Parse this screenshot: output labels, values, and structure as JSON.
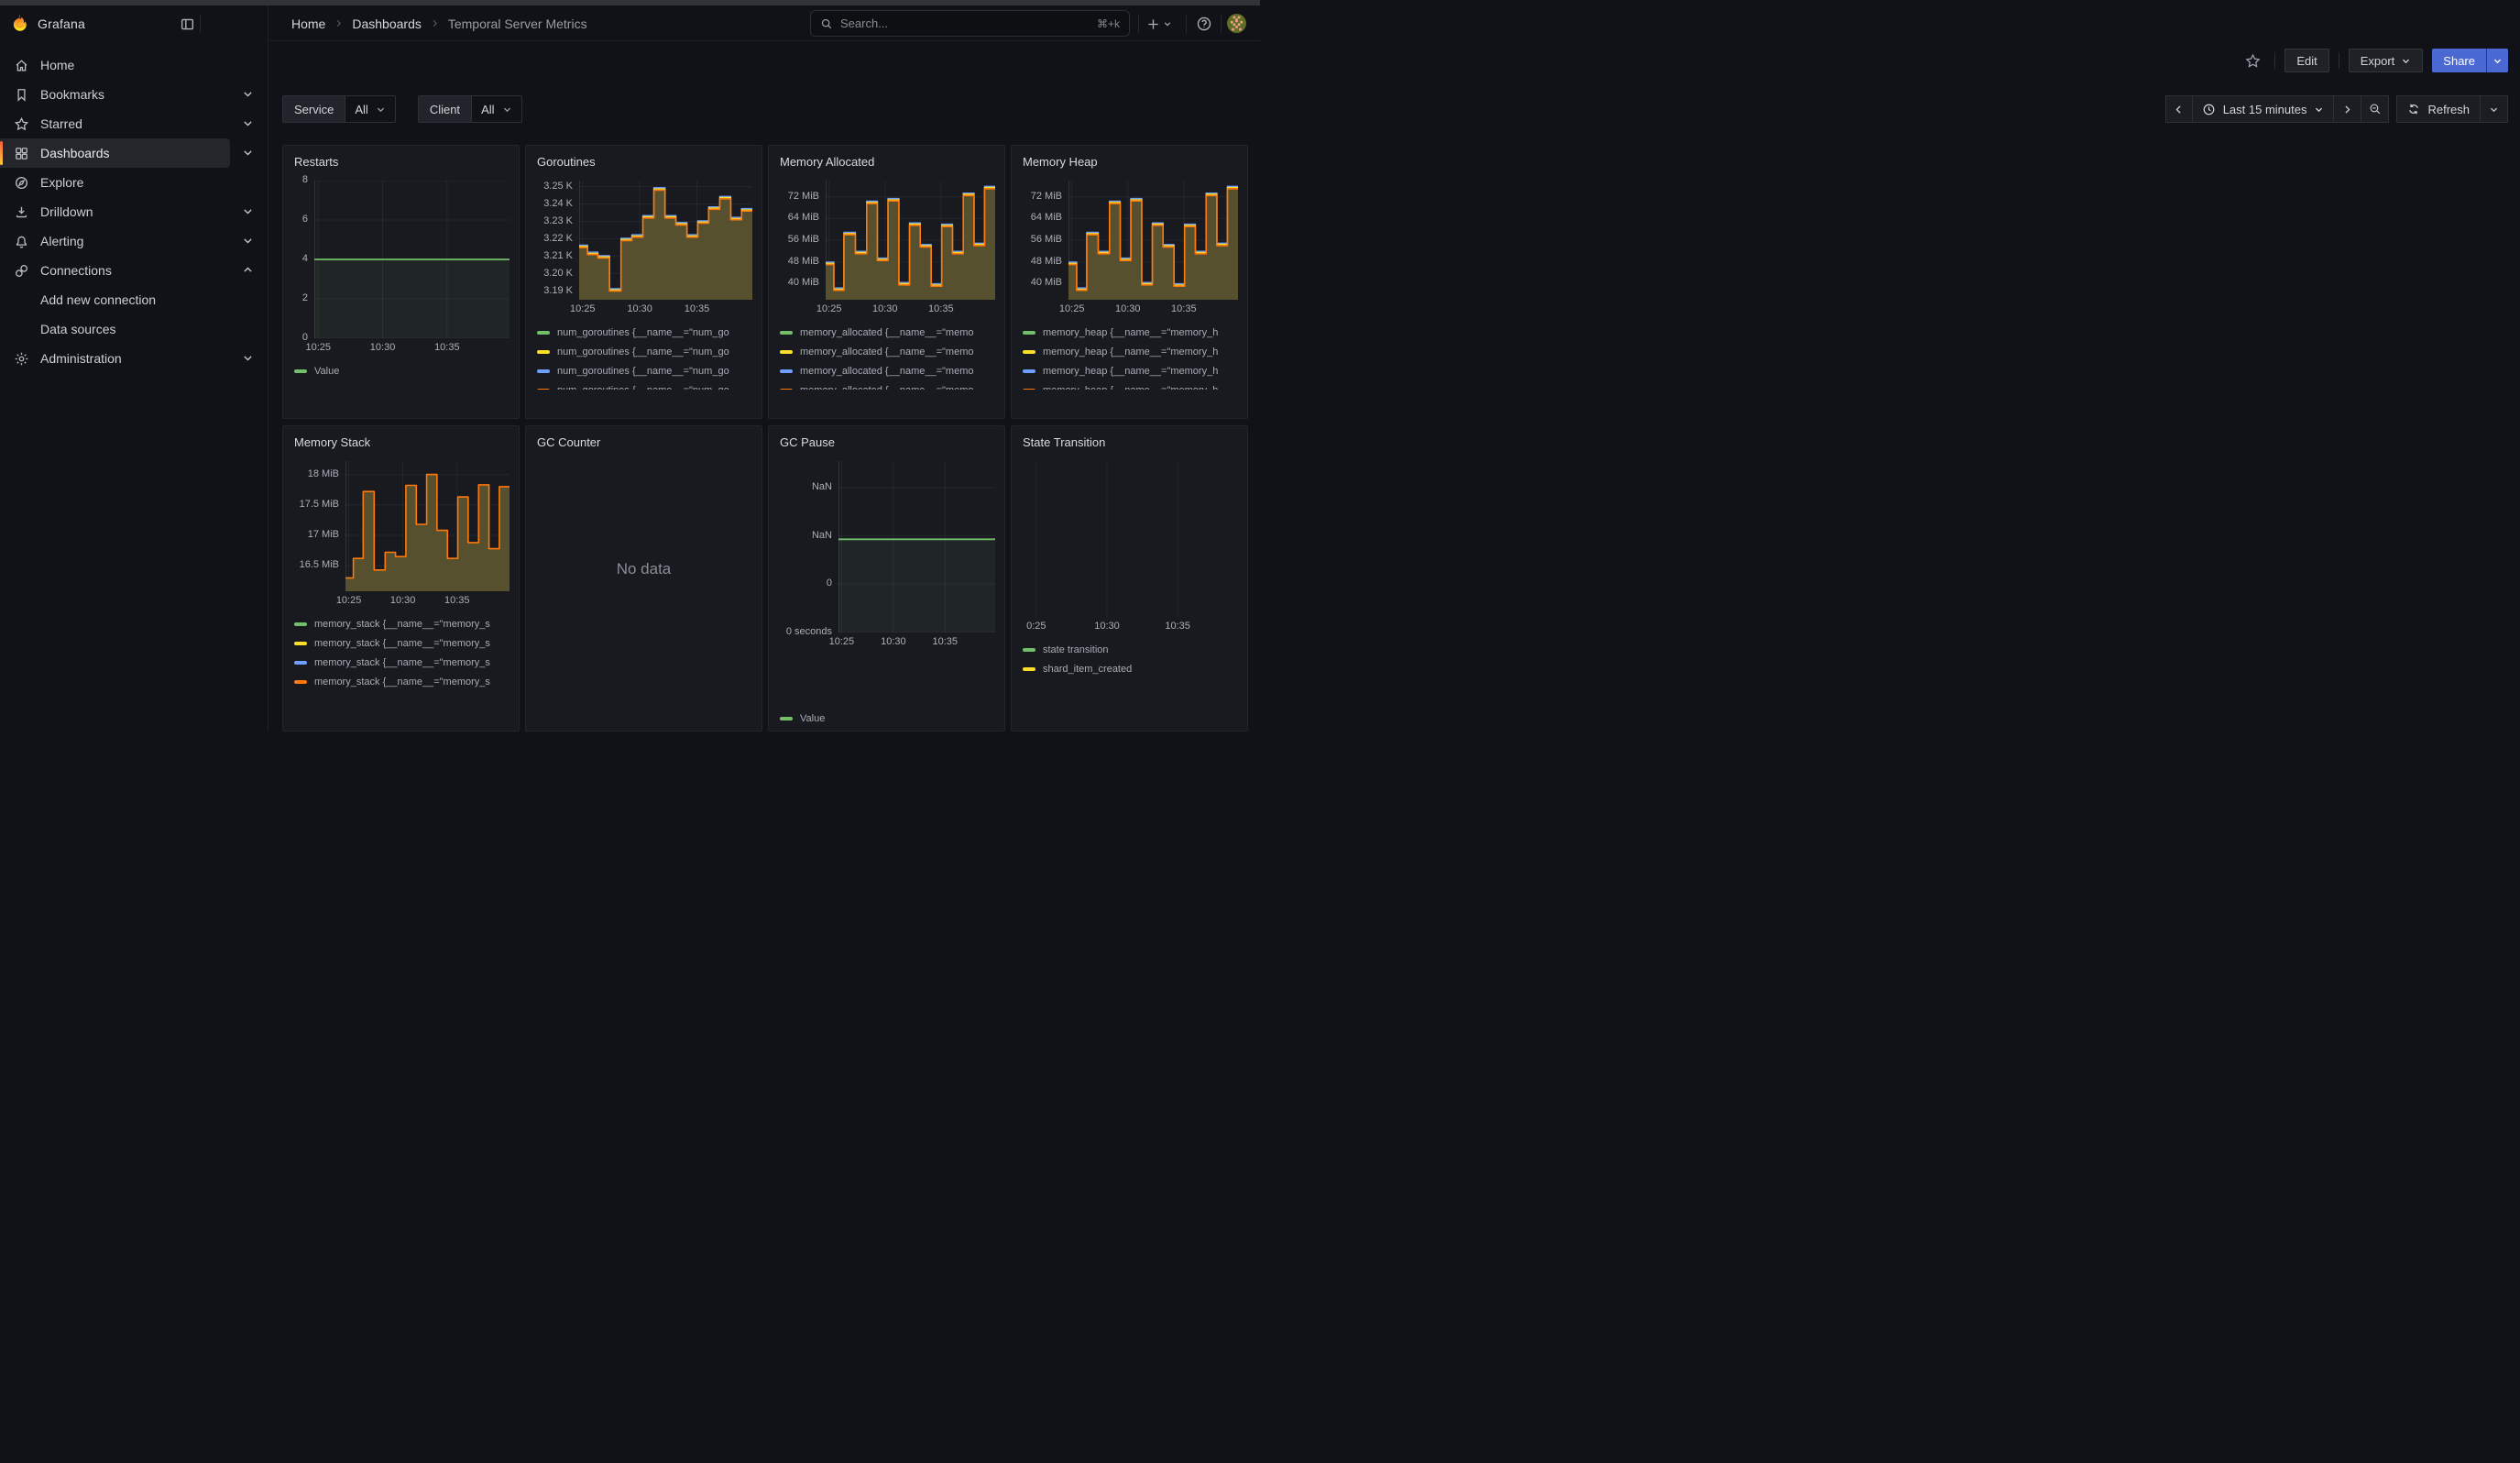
{
  "header": {
    "brand": "Grafana",
    "breadcrumb": [
      "Home",
      "Dashboards",
      "Temporal Server Metrics"
    ],
    "search_placeholder": "Search...",
    "search_shortcut": "⌘+k"
  },
  "toolbar": {
    "edit_label": "Edit",
    "export_label": "Export",
    "share_label": "Share"
  },
  "sidebar": {
    "items": [
      {
        "label": "Home",
        "icon": "home"
      },
      {
        "label": "Bookmarks",
        "icon": "bookmark",
        "chevron": "down"
      },
      {
        "label": "Starred",
        "icon": "star",
        "chevron": "down"
      },
      {
        "label": "Dashboards",
        "icon": "grid",
        "chevron": "down",
        "selected": true
      },
      {
        "label": "Explore",
        "icon": "compass"
      },
      {
        "label": "Drilldown",
        "icon": "drilldown",
        "chevron": "down"
      },
      {
        "label": "Alerting",
        "icon": "bell",
        "chevron": "down"
      },
      {
        "label": "Connections",
        "icon": "link",
        "chevron": "up"
      },
      {
        "label": "Add new connection",
        "sub": true
      },
      {
        "label": "Data sources",
        "sub": true
      },
      {
        "label": "Administration",
        "icon": "gear",
        "chevron": "down"
      }
    ]
  },
  "filters": [
    {
      "label": "Service",
      "value": "All"
    },
    {
      "label": "Client",
      "value": "All"
    }
  ],
  "timebar": {
    "range_label": "Last 15 minutes",
    "refresh_label": "Refresh"
  },
  "colors": {
    "green": "#73BF69",
    "yellow": "#FADE2A",
    "blue": "#6E9FFF",
    "orange": "#FF780A",
    "olive_fill": "#57502F",
    "accent_blue": "#4A69D3",
    "brand_orange": "#F15B2A"
  },
  "chart_data": [
    {
      "type": "line",
      "title": "Restarts",
      "ylim": [
        0,
        8
      ],
      "yticks": [
        {
          "v": 0,
          "label": "0"
        },
        {
          "v": 2,
          "label": "2"
        },
        {
          "v": 4,
          "label": "4"
        },
        {
          "v": 6,
          "label": "6"
        },
        {
          "v": 8,
          "label": "8"
        }
      ],
      "xticks": [
        {
          "f": 0.02,
          "label": "10:25"
        },
        {
          "f": 0.35,
          "label": "10:30"
        },
        {
          "f": 0.68,
          "label": "10:35"
        }
      ],
      "line_value": 4,
      "line_color": "#73BF69",
      "fill": "rgba(115,191,105,0.08)",
      "legend": [
        {
          "color": "#73BF69",
          "label": "Value"
        }
      ]
    },
    {
      "type": "area-step",
      "title": "Goroutines",
      "ylim": [
        3.185,
        3.2535
      ],
      "yticks": [
        {
          "v": 3.19,
          "label": "3.19 K"
        },
        {
          "v": 3.2,
          "label": "3.20 K"
        },
        {
          "v": 3.21,
          "label": "3.21 K"
        },
        {
          "v": 3.22,
          "label": "3.22 K"
        },
        {
          "v": 3.23,
          "label": "3.23 K"
        },
        {
          "v": 3.24,
          "label": "3.24 K"
        },
        {
          "v": 3.25,
          "label": "3.25 K"
        }
      ],
      "xticks": [
        {
          "f": 0.02,
          "label": "10:25"
        },
        {
          "f": 0.35,
          "label": "10:30"
        },
        {
          "f": 0.68,
          "label": "10:35"
        }
      ],
      "x_domain": [
        "10:24",
        "10:40"
      ],
      "x_bounds": [
        0,
        0.048,
        0.108,
        0.175,
        0.242,
        0.305,
        0.368,
        0.432,
        0.495,
        0.558,
        0.622,
        0.685,
        0.748,
        0.812,
        0.875,
        0.938,
        1
      ],
      "values": [
        3.215,
        3.211,
        3.209,
        3.19,
        3.219,
        3.221,
        3.232,
        3.248,
        3.232,
        3.228,
        3.221,
        3.229,
        3.237,
        3.243,
        3.231,
        3.236
      ],
      "unit": "K",
      "fringe": true,
      "legend": [
        {
          "color": "#73BF69",
          "label": "num_goroutines {__name__=\"num_go"
        },
        {
          "color": "#FADE2A",
          "label": "num_goroutines {__name__=\"num_go"
        },
        {
          "color": "#6E9FFF",
          "label": "num_goroutines {__name__=\"num_go"
        },
        {
          "color": "#FF780A",
          "label": "num_goroutines {__name__=\"num_go"
        }
      ],
      "legend_clipped": true
    },
    {
      "type": "area-step",
      "title": "Memory Allocated",
      "ylim": [
        34,
        78
      ],
      "yticks": [
        {
          "v": 40,
          "label": "40 MiB"
        },
        {
          "v": 48,
          "label": "48 MiB"
        },
        {
          "v": 56,
          "label": "56 MiB"
        },
        {
          "v": 64,
          "label": "64 MiB"
        },
        {
          "v": 72,
          "label": "72 MiB"
        }
      ],
      "xticks": [
        {
          "f": 0.02,
          "label": "10:25"
        },
        {
          "f": 0.35,
          "label": "10:30"
        },
        {
          "f": 0.68,
          "label": "10:35"
        }
      ],
      "x_domain": [
        "10:24",
        "10:40"
      ],
      "x_bounds": [
        0,
        0.048,
        0.108,
        0.175,
        0.242,
        0.305,
        0.368,
        0.432,
        0.495,
        0.558,
        0.622,
        0.685,
        0.748,
        0.812,
        0.875,
        0.938,
        1
      ],
      "values": [
        47,
        37.5,
        58,
        51,
        69.5,
        48.5,
        70.5,
        39.5,
        61.5,
        53.5,
        39,
        61,
        51,
        72.5,
        54,
        75
      ],
      "unit": "MiB",
      "fringe": true,
      "legend": [
        {
          "color": "#73BF69",
          "label": "memory_allocated {__name__=\"memo"
        },
        {
          "color": "#FADE2A",
          "label": "memory_allocated {__name__=\"memo"
        },
        {
          "color": "#6E9FFF",
          "label": "memory_allocated {__name__=\"memo"
        },
        {
          "color": "#FF780A",
          "label": "memory_allocated {__name__=\"memo"
        }
      ],
      "legend_clipped": true
    },
    {
      "type": "area-step",
      "title": "Memory Heap",
      "ylim": [
        34,
        78
      ],
      "yticks": [
        {
          "v": 40,
          "label": "40 MiB"
        },
        {
          "v": 48,
          "label": "48 MiB"
        },
        {
          "v": 56,
          "label": "56 MiB"
        },
        {
          "v": 64,
          "label": "64 MiB"
        },
        {
          "v": 72,
          "label": "72 MiB"
        }
      ],
      "xticks": [
        {
          "f": 0.02,
          "label": "10:25"
        },
        {
          "f": 0.35,
          "label": "10:30"
        },
        {
          "f": 0.68,
          "label": "10:35"
        }
      ],
      "x_domain": [
        "10:24",
        "10:40"
      ],
      "x_bounds": [
        0,
        0.048,
        0.108,
        0.175,
        0.242,
        0.305,
        0.368,
        0.432,
        0.495,
        0.558,
        0.622,
        0.685,
        0.748,
        0.812,
        0.875,
        0.938,
        1
      ],
      "values": [
        47,
        37.5,
        58,
        51,
        69.5,
        48.5,
        70.5,
        39.5,
        61.5,
        53.5,
        39,
        61,
        51,
        72.5,
        54,
        75
      ],
      "unit": "MiB",
      "fringe": true,
      "legend": [
        {
          "color": "#73BF69",
          "label": "memory_heap {__name__=\"memory_h"
        },
        {
          "color": "#FADE2A",
          "label": "memory_heap {__name__=\"memory_h"
        },
        {
          "color": "#6E9FFF",
          "label": "memory_heap {__name__=\"memory_h"
        },
        {
          "color": "#FF780A",
          "label": "memory_heap {__name__=\"memory_h"
        }
      ],
      "legend_clipped": true
    },
    {
      "type": "area-step",
      "title": "Memory Stack",
      "ylim": [
        16.08,
        18.22
      ],
      "yticks": [
        {
          "v": 16.5,
          "label": "16.5 MiB"
        },
        {
          "v": 17,
          "label": "17 MiB"
        },
        {
          "v": 17.5,
          "label": "17.5 MiB"
        },
        {
          "v": 18,
          "label": "18 MiB"
        }
      ],
      "xticks": [
        {
          "f": 0.02,
          "label": "10:25"
        },
        {
          "f": 0.35,
          "label": "10:30"
        },
        {
          "f": 0.68,
          "label": "10:35"
        }
      ],
      "x_domain": [
        "10:24",
        "10:40"
      ],
      "x_bounds": [
        0,
        0.048,
        0.108,
        0.175,
        0.242,
        0.305,
        0.368,
        0.432,
        0.495,
        0.558,
        0.622,
        0.685,
        0.748,
        0.812,
        0.875,
        0.938,
        1
      ],
      "values": [
        16.3,
        16.62,
        17.72,
        16.43,
        16.72,
        16.65,
        17.82,
        17.18,
        18.0,
        17.08,
        16.62,
        17.63,
        16.88,
        17.83,
        16.78,
        17.8
      ],
      "unit": "MiB",
      "fringe": false,
      "legend": [
        {
          "color": "#73BF69",
          "label": "memory_stack {__name__=\"memory_s"
        },
        {
          "color": "#FADE2A",
          "label": "memory_stack {__name__=\"memory_s"
        },
        {
          "color": "#6E9FFF",
          "label": "memory_stack {__name__=\"memory_s"
        },
        {
          "color": "#FF780A",
          "label": "memory_stack {__name__=\"memory_s"
        }
      ],
      "legend_clipped": false
    },
    {
      "type": "nodata",
      "title": "GC Counter",
      "message": "No data"
    },
    {
      "type": "line",
      "title": "GC Pause",
      "ylim": [
        0,
        3.55
      ],
      "yticks": [
        {
          "v": 0,
          "label": "0 seconds"
        },
        {
          "v": 1,
          "label": "0"
        },
        {
          "v": 2,
          "label": "NaN"
        },
        {
          "v": 3,
          "label": "NaN"
        }
      ],
      "xticks": [
        {
          "f": 0.02,
          "label": "10:25"
        },
        {
          "f": 0.35,
          "label": "10:30"
        },
        {
          "f": 0.68,
          "label": "10:35"
        }
      ],
      "line_value": 1.93,
      "line_color": "#73BF69",
      "fill": "rgba(115,191,105,0.08)",
      "legend": [
        {
          "color": "#73BF69",
          "label": "Value"
        }
      ]
    },
    {
      "type": "empty",
      "title": "State Transition",
      "yticks": [],
      "xticks": [
        {
          "f": 0.03,
          "label": "0:25"
        },
        {
          "f": 0.37,
          "label": "10:30"
        },
        {
          "f": 0.71,
          "label": "10:35"
        }
      ],
      "legend": [
        {
          "color": "#73BF69",
          "label": "state transition"
        },
        {
          "color": "#FADE2A",
          "label": "shard_item_created"
        }
      ]
    }
  ]
}
